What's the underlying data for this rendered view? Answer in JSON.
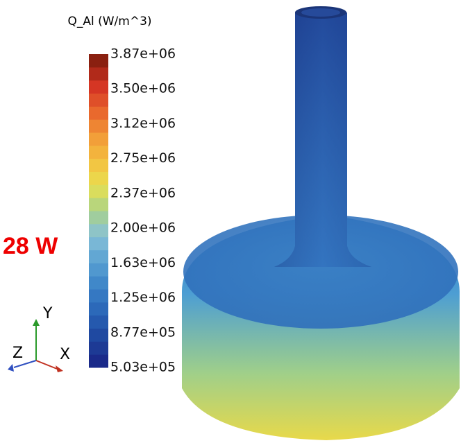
{
  "colorbar": {
    "title": "Q_Al (W/m^3)",
    "labels": [
      "3.87e+06",
      "3.50e+06",
      "3.12e+06",
      "2.75e+06",
      "2.37e+06",
      "2.00e+06",
      "1.63e+06",
      "1.25e+06",
      "8.77e+05",
      "5.03e+05"
    ]
  },
  "annotation": "28 W",
  "axes": {
    "y": "Y",
    "z": "Z",
    "x": "X"
  }
}
